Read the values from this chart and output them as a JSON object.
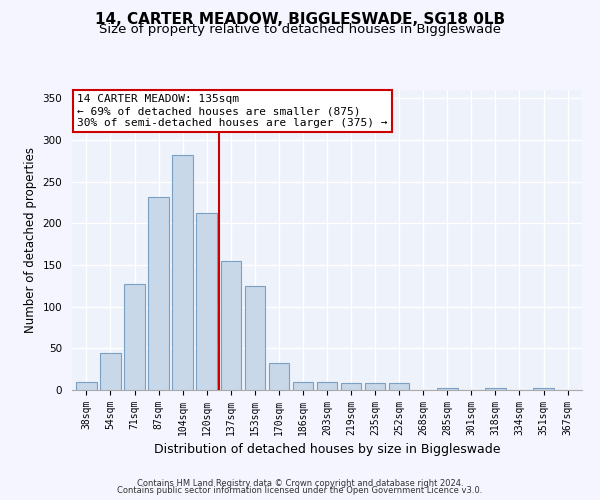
{
  "title1": "14, CARTER MEADOW, BIGGLESWADE, SG18 0LB",
  "title2": "Size of property relative to detached houses in Biggleswade",
  "xlabel": "Distribution of detached houses by size in Biggleswade",
  "ylabel": "Number of detached properties",
  "categories": [
    "38sqm",
    "54sqm",
    "71sqm",
    "87sqm",
    "104sqm",
    "120sqm",
    "137sqm",
    "153sqm",
    "170sqm",
    "186sqm",
    "203sqm",
    "219sqm",
    "235sqm",
    "252sqm",
    "268sqm",
    "285sqm",
    "301sqm",
    "318sqm",
    "334sqm",
    "351sqm",
    "367sqm"
  ],
  "values": [
    10,
    45,
    127,
    232,
    282,
    213,
    155,
    125,
    33,
    10,
    10,
    8,
    8,
    8,
    0,
    3,
    0,
    3,
    0,
    3,
    0
  ],
  "bar_color": "#c8d8e8",
  "bar_edgecolor": "#7aa0c4",
  "property_bin_index": 6,
  "annotation_text": "14 CARTER MEADOW: 135sqm\n← 69% of detached houses are smaller (875)\n30% of semi-detached houses are larger (375) →",
  "footer1": "Contains HM Land Registry data © Crown copyright and database right 2024.",
  "footer2": "Contains public sector information licensed under the Open Government Licence v3.0.",
  "ylim": [
    0,
    360
  ],
  "yticks": [
    0,
    50,
    100,
    150,
    200,
    250,
    300,
    350
  ],
  "bg_color": "#eef2fa",
  "grid_color": "#ffffff",
  "annotation_box_color": "#ffffff",
  "annotation_box_edgecolor": "#cc0000",
  "vline_color": "#cc0000",
  "title1_fontsize": 11,
  "title2_fontsize": 9.5,
  "tick_fontsize": 7,
  "ylabel_fontsize": 8.5,
  "xlabel_fontsize": 9,
  "footer_fontsize": 6,
  "annotation_fontsize": 8
}
